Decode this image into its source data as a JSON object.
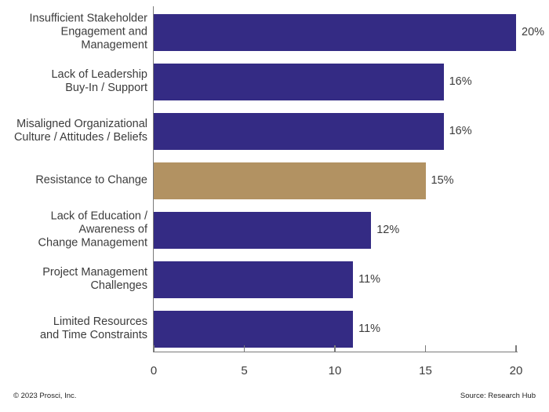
{
  "chart_data": {
    "type": "bar",
    "orientation": "horizontal",
    "title": "",
    "xlabel": "",
    "ylabel": "",
    "categories": [
      "Insufficient Stakeholder\nEngagement and\nManagement",
      "Lack of Leadership\nBuy-In / Support",
      "Misaligned Organizational\nCulture / Attitudes / Beliefs",
      "Resistance to Change",
      "Lack of Education /\nAwareness of\nChange Management",
      "Project Management\nChallenges",
      "Limited Resources\nand Time Constraints"
    ],
    "values": [
      20,
      16,
      16,
      15,
      12,
      11,
      11
    ],
    "value_labels": [
      "20%",
      "16%",
      "16%",
      "15%",
      "12%",
      "11%",
      "11%"
    ],
    "highlight_index": 3,
    "xlim": [
      0,
      20
    ],
    "x_ticks": [
      0,
      5,
      10,
      15,
      20
    ],
    "x_tick_labels": [
      "0",
      "5",
      "10",
      "15",
      "20"
    ],
    "grid": false,
    "legend": null
  },
  "colors": {
    "bar_primary": "#342b84",
    "bar_highlight": "#b29262",
    "axis": "#7a7a7a",
    "text": "#3c3c3c"
  },
  "footer": {
    "copyright": "© 2023 Prosci, Inc.",
    "source": "Source: Research Hub"
  }
}
